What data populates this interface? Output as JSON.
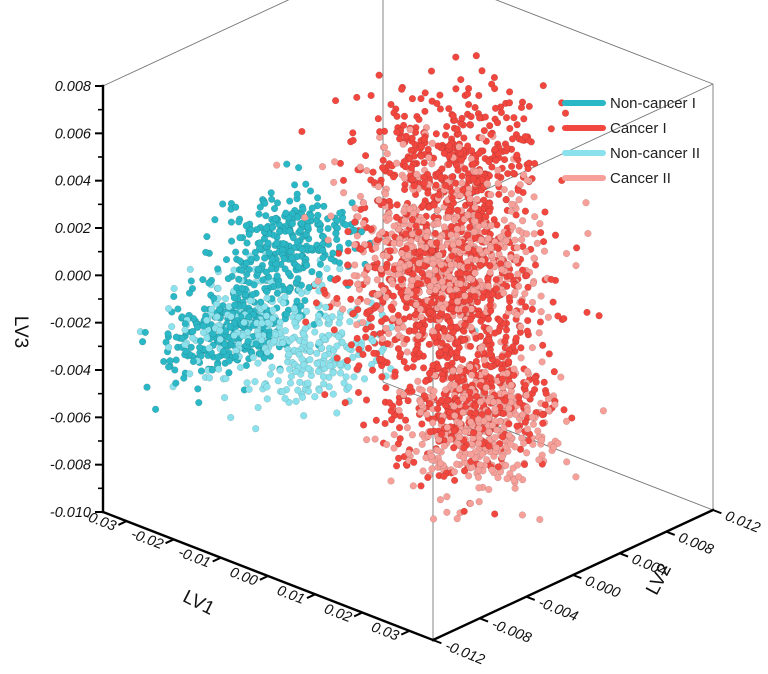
{
  "chart_data": {
    "type": "scatter",
    "projection": "3d",
    "xlabel": "LV1",
    "ylabel": "LV2",
    "zlabel": "LV3",
    "x_ticks": [
      "-0.03",
      "-0.02",
      "-0.01",
      "0.00",
      "0.01",
      "0.02",
      "0.03"
    ],
    "y_ticks": [
      "-0.012",
      "-0.008",
      "-0.004",
      "0.000",
      "0.004",
      "0.008",
      "0.012"
    ],
    "z_ticks": [
      "-0.010",
      "-0.008",
      "-0.006",
      "-0.004",
      "-0.002",
      "0.000",
      "0.002",
      "0.004",
      "0.006",
      "0.008"
    ],
    "x_range": [
      -0.035,
      0.035
    ],
    "y_range": [
      -0.012,
      0.012
    ],
    "z_range": [
      -0.01,
      0.008
    ],
    "legend_position": "top-right",
    "series": [
      {
        "name": "Non-cancer I",
        "color": "#2bb8c6",
        "n_points": 600,
        "clusters": [
          {
            "center": [
              -0.028,
              -0.004,
              -0.0036
            ],
            "spread": [
              0.004,
              0.0025,
              0.0008
            ],
            "weight": 0.5
          },
          {
            "center": [
              -0.018,
              -0.003,
              0.0005
            ],
            "spread": [
              0.004,
              0.0025,
              0.001
            ],
            "weight": 0.5
          }
        ]
      },
      {
        "name": "Cancer I",
        "color": "#f2473f",
        "n_points": 1400,
        "clusters": [
          {
            "center": [
              0.002,
              0.003,
              0.004
            ],
            "spread": [
              0.006,
              0.0025,
              0.0015
            ],
            "weight": 0.3
          },
          {
            "center": [
              0.008,
              0.0,
              -0.0005
            ],
            "spread": [
              0.008,
              0.0028,
              0.002
            ],
            "weight": 0.5
          },
          {
            "center": [
              0.018,
              -0.002,
              -0.004
            ],
            "spread": [
              0.006,
              0.0025,
              0.0012
            ],
            "weight": 0.2
          }
        ]
      },
      {
        "name": "Non-cancer II",
        "color": "#8ce2ec",
        "n_points": 350,
        "clusters": [
          {
            "center": [
              -0.025,
              -0.004,
              -0.003
            ],
            "spread": [
              0.004,
              0.0025,
              0.001
            ],
            "weight": 0.4
          },
          {
            "center": [
              -0.01,
              -0.004,
              -0.0032
            ],
            "spread": [
              0.004,
              0.0025,
              0.001
            ],
            "weight": 0.6
          }
        ]
      },
      {
        "name": "Cancer II",
        "color": "#f7a09a",
        "n_points": 1000,
        "clusters": [
          {
            "center": [
              0.008,
              0.0,
              0.0015
            ],
            "spread": [
              0.008,
              0.0025,
              0.0018
            ],
            "weight": 0.6
          },
          {
            "center": [
              0.02,
              -0.002,
              -0.0045
            ],
            "spread": [
              0.006,
              0.0025,
              0.0012
            ],
            "weight": 0.4
          }
        ]
      }
    ]
  }
}
